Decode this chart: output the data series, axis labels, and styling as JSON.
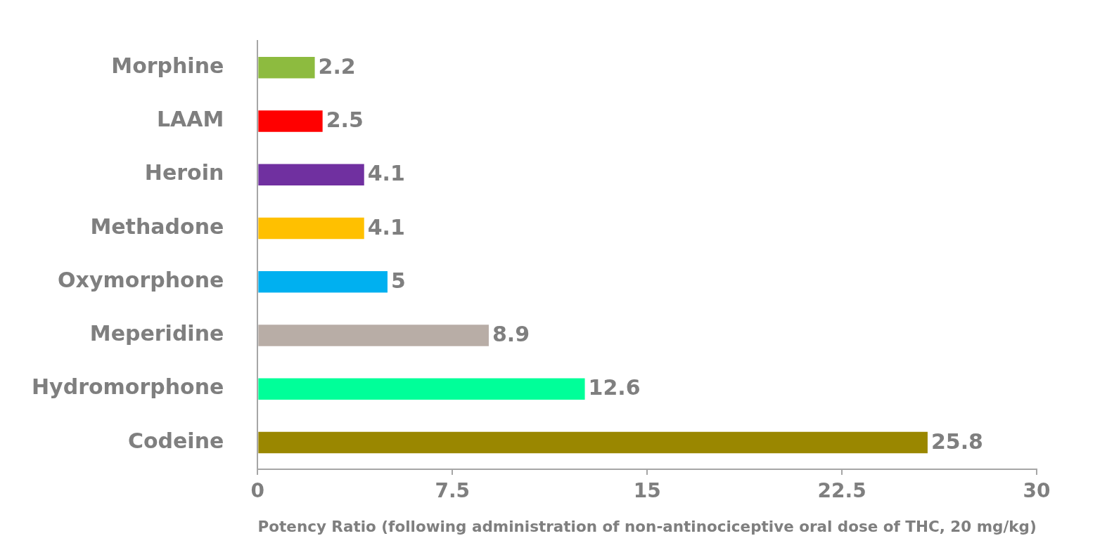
{
  "chart_data": {
    "type": "bar",
    "orientation": "horizontal",
    "xlabel": "Potency Ratio (following administration of non-antinociceptive oral dose of THC, 20 mg/kg)",
    "categories": [
      "Morphine",
      "LAAM",
      "Heroin",
      "Methadone",
      "Oxymorphone",
      "Meperidine",
      "Hydromorphone",
      "Codeine"
    ],
    "values": [
      2.2,
      2.5,
      4.1,
      4.1,
      5,
      8.9,
      12.6,
      25.8
    ],
    "colors": [
      "#8dbb3f",
      "#ff0000",
      "#7030a0",
      "#ffc000",
      "#00b0f0",
      "#b8ada6",
      "#00ff99",
      "#9a8700"
    ],
    "xlim": [
      0,
      30
    ],
    "xticks": [
      0,
      7.5,
      15,
      22.5,
      30
    ],
    "grid": false,
    "legend": false,
    "data_labels": true
  }
}
